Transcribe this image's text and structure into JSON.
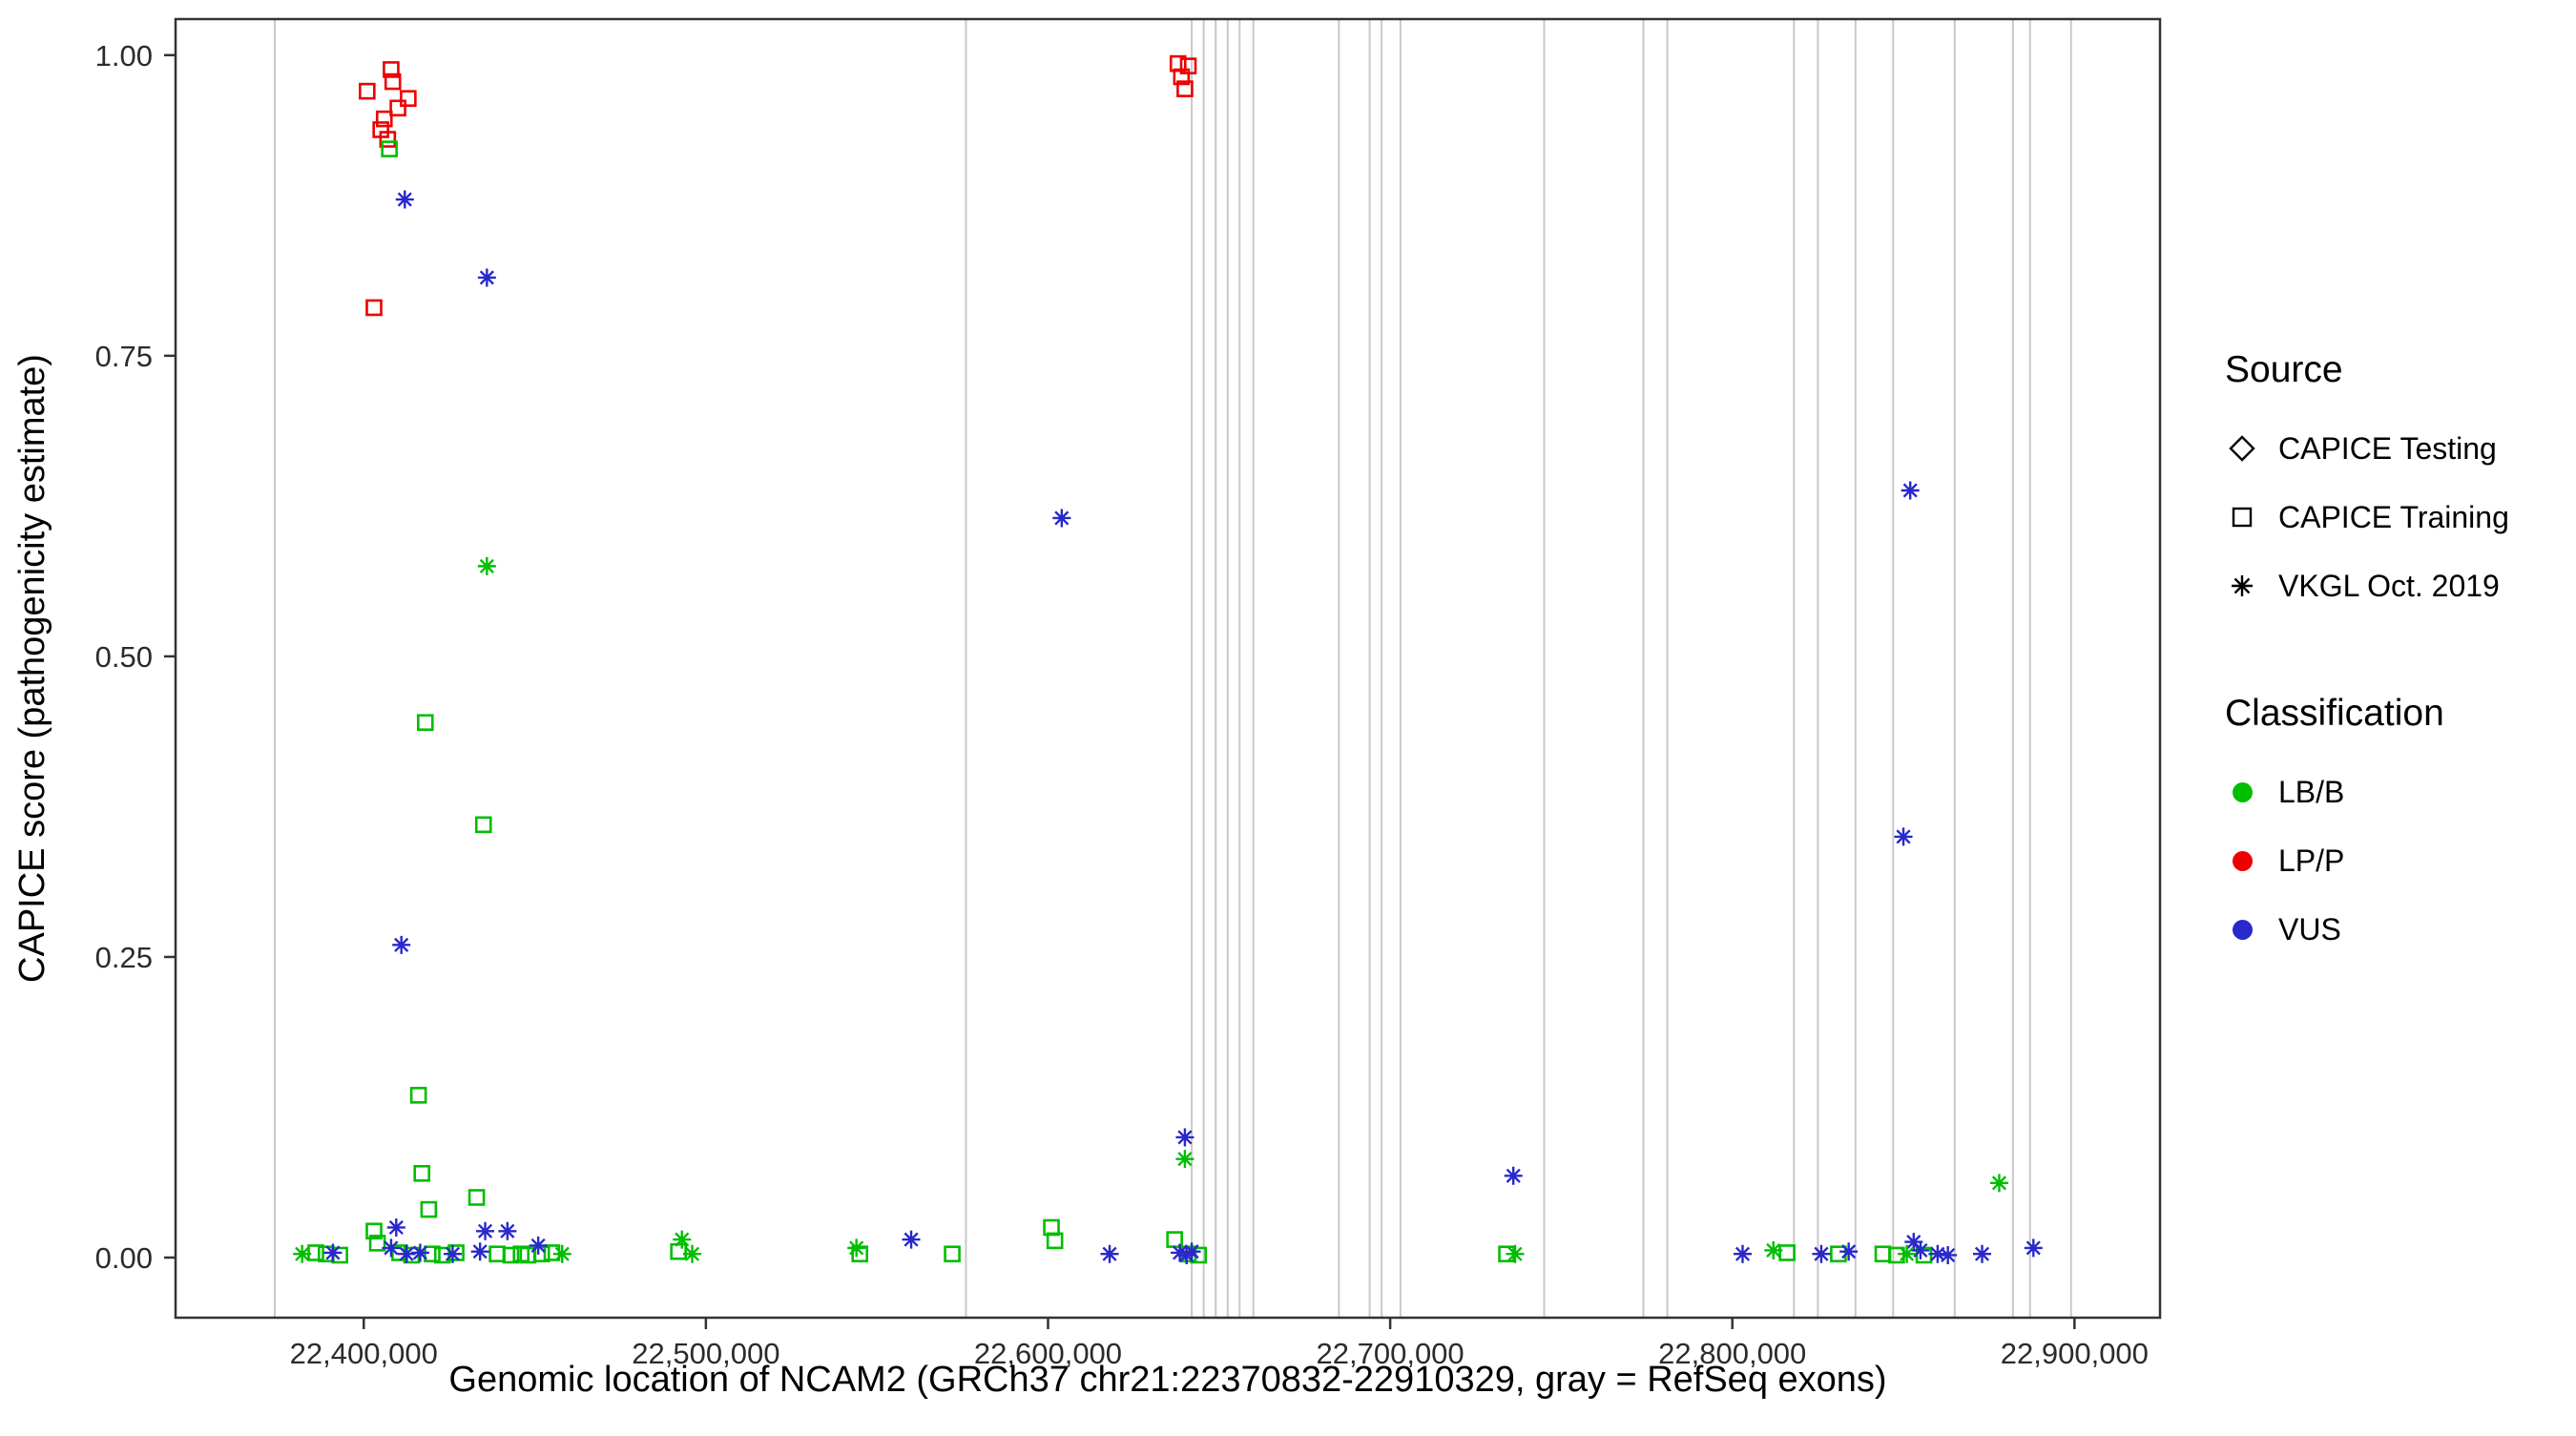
{
  "legend": {
    "source": {
      "title": "Source",
      "items": [
        {
          "label": "CAPICE Testing",
          "shape": "diamond"
        },
        {
          "label": "CAPICE Training",
          "shape": "square"
        },
        {
          "label": "VKGL Oct. 2019",
          "shape": "asterisk"
        }
      ]
    },
    "classification": {
      "title": "Classification",
      "items": [
        {
          "label": "LB/B",
          "color_key": "LB/B"
        },
        {
          "label": "LP/P",
          "color_key": "LP/P"
        },
        {
          "label": "VUS",
          "color_key": "VUS"
        }
      ]
    }
  },
  "chart_data": {
    "type": "scatter",
    "title": "",
    "xlabel": "Genomic location of NCAM2 (GRCh37 chr21:22370832-22910329, gray = RefSeq exons)",
    "ylabel": "CAPICE score (pathogenicity estimate)",
    "xlim": [
      22345000,
      22925000
    ],
    "ylim": [
      -0.05,
      1.03
    ],
    "grid": "off",
    "legend_position": "right",
    "x_ticks": [
      {
        "value": 22400000,
        "label": "22,400,000"
      },
      {
        "value": 22500000,
        "label": "22,500,000"
      },
      {
        "value": 22600000,
        "label": "22,600,000"
      },
      {
        "value": 22700000,
        "label": "22,700,000"
      },
      {
        "value": 22800000,
        "label": "22,800,000"
      },
      {
        "value": 22900000,
        "label": "22,900,000"
      }
    ],
    "y_ticks": [
      {
        "value": 0.0,
        "label": "0.00"
      },
      {
        "value": 0.25,
        "label": "0.25"
      },
      {
        "value": 0.5,
        "label": "0.50"
      },
      {
        "value": 0.75,
        "label": "0.75"
      },
      {
        "value": 1.0,
        "label": "1.00"
      }
    ],
    "exon_color": "#C9C9C9",
    "panel_color": "#333333",
    "text_color": "#2b2b2b",
    "colors": {
      "LB/B": "#00BE00",
      "LP/P": "#EE0000",
      "VUS": "#2828CC"
    },
    "shapes": {
      "CAPICE Testing": "diamond",
      "CAPICE Training": "square",
      "VKGL Oct. 2019": "asterisk"
    },
    "refseq_exons": [
      22374000,
      22576000,
      22642000,
      22645500,
      22649000,
      22652500,
      22656000,
      22660000,
      22685000,
      22694000,
      22697500,
      22703000,
      22745000,
      22774000,
      22781000,
      22818000,
      22825000,
      22836000,
      22847000,
      22865000,
      22882000,
      22887000,
      22899000
    ],
    "series": [
      {
        "source": "CAPICE Training",
        "classification": "LP/P",
        "points": [
          [
            22401000,
            0.97
          ],
          [
            22405000,
            0.938
          ],
          [
            22406000,
            0.947
          ],
          [
            22408000,
            0.988
          ],
          [
            22408500,
            0.978
          ],
          [
            22410000,
            0.956
          ],
          [
            22413000,
            0.964
          ],
          [
            22407000,
            0.93
          ],
          [
            22403000,
            0.79
          ],
          [
            22638000,
            0.993
          ],
          [
            22641000,
            0.991
          ],
          [
            22639000,
            0.982
          ],
          [
            22640000,
            0.972
          ]
        ]
      },
      {
        "source": "CAPICE Training",
        "classification": "LB/B",
        "points": [
          [
            22407500,
            0.922
          ],
          [
            22418000,
            0.445
          ],
          [
            22435000,
            0.36
          ],
          [
            22416000,
            0.135
          ],
          [
            22417000,
            0.07
          ],
          [
            22433000,
            0.05
          ],
          [
            22419000,
            0.04
          ],
          [
            22386000,
            0.004
          ],
          [
            22389000,
            0.003
          ],
          [
            22393000,
            0.002
          ],
          [
            22403000,
            0.022
          ],
          [
            22404000,
            0.012
          ],
          [
            22410500,
            0.004
          ],
          [
            22414000,
            0.002
          ],
          [
            22420000,
            0.003
          ],
          [
            22423000,
            0.002
          ],
          [
            22427000,
            0.004
          ],
          [
            22439000,
            0.003
          ],
          [
            22443000,
            0.002
          ],
          [
            22446000,
            0.003
          ],
          [
            22448000,
            0.002
          ],
          [
            22452000,
            0.003
          ],
          [
            22455000,
            0.004
          ],
          [
            22492000,
            0.005
          ],
          [
            22545000,
            0.003
          ],
          [
            22572000,
            0.003
          ],
          [
            22601000,
            0.025
          ],
          [
            22602000,
            0.014
          ],
          [
            22637000,
            0.015
          ],
          [
            22641000,
            0.003
          ],
          [
            22644000,
            0.002
          ],
          [
            22734000,
            0.003
          ],
          [
            22816000,
            0.004
          ],
          [
            22831000,
            0.003
          ],
          [
            22844000,
            0.003
          ],
          [
            22848000,
            0.002
          ],
          [
            22856000,
            0.002
          ]
        ]
      },
      {
        "source": "VKGL Oct. 2019",
        "classification": "VUS",
        "points": [
          [
            22412000,
            0.88
          ],
          [
            22436000,
            0.815
          ],
          [
            22604000,
            0.615
          ],
          [
            22852000,
            0.638
          ],
          [
            22850000,
            0.35
          ],
          [
            22411000,
            0.26
          ],
          [
            22640000,
            0.1
          ],
          [
            22736000,
            0.068
          ],
          [
            22391000,
            0.004
          ],
          [
            22408000,
            0.008
          ],
          [
            22409500,
            0.025
          ],
          [
            22412500,
            0.003
          ],
          [
            22416500,
            0.004
          ],
          [
            22426000,
            0.003
          ],
          [
            22434000,
            0.005
          ],
          [
            22435500,
            0.022
          ],
          [
            22442000,
            0.022
          ],
          [
            22451000,
            0.01
          ],
          [
            22560000,
            0.015
          ],
          [
            22618000,
            0.003
          ],
          [
            22638500,
            0.004
          ],
          [
            22640500,
            0.002
          ],
          [
            22642000,
            0.005
          ],
          [
            22803000,
            0.003
          ],
          [
            22826000,
            0.003
          ],
          [
            22834000,
            0.005
          ],
          [
            22853000,
            0.013
          ],
          [
            22855000,
            0.006
          ],
          [
            22860000,
            0.003
          ],
          [
            22863000,
            0.002
          ],
          [
            22873000,
            0.003
          ],
          [
            22888000,
            0.008
          ]
        ]
      },
      {
        "source": "VKGL Oct. 2019",
        "classification": "LB/B",
        "points": [
          [
            22436000,
            0.575
          ],
          [
            22640000,
            0.082
          ],
          [
            22878000,
            0.062
          ],
          [
            22382000,
            0.003
          ],
          [
            22458000,
            0.003
          ],
          [
            22493000,
            0.015
          ],
          [
            22496000,
            0.003
          ],
          [
            22544000,
            0.008
          ],
          [
            22736500,
            0.003
          ],
          [
            22812000,
            0.006
          ],
          [
            22851000,
            0.003
          ]
        ]
      }
    ]
  }
}
